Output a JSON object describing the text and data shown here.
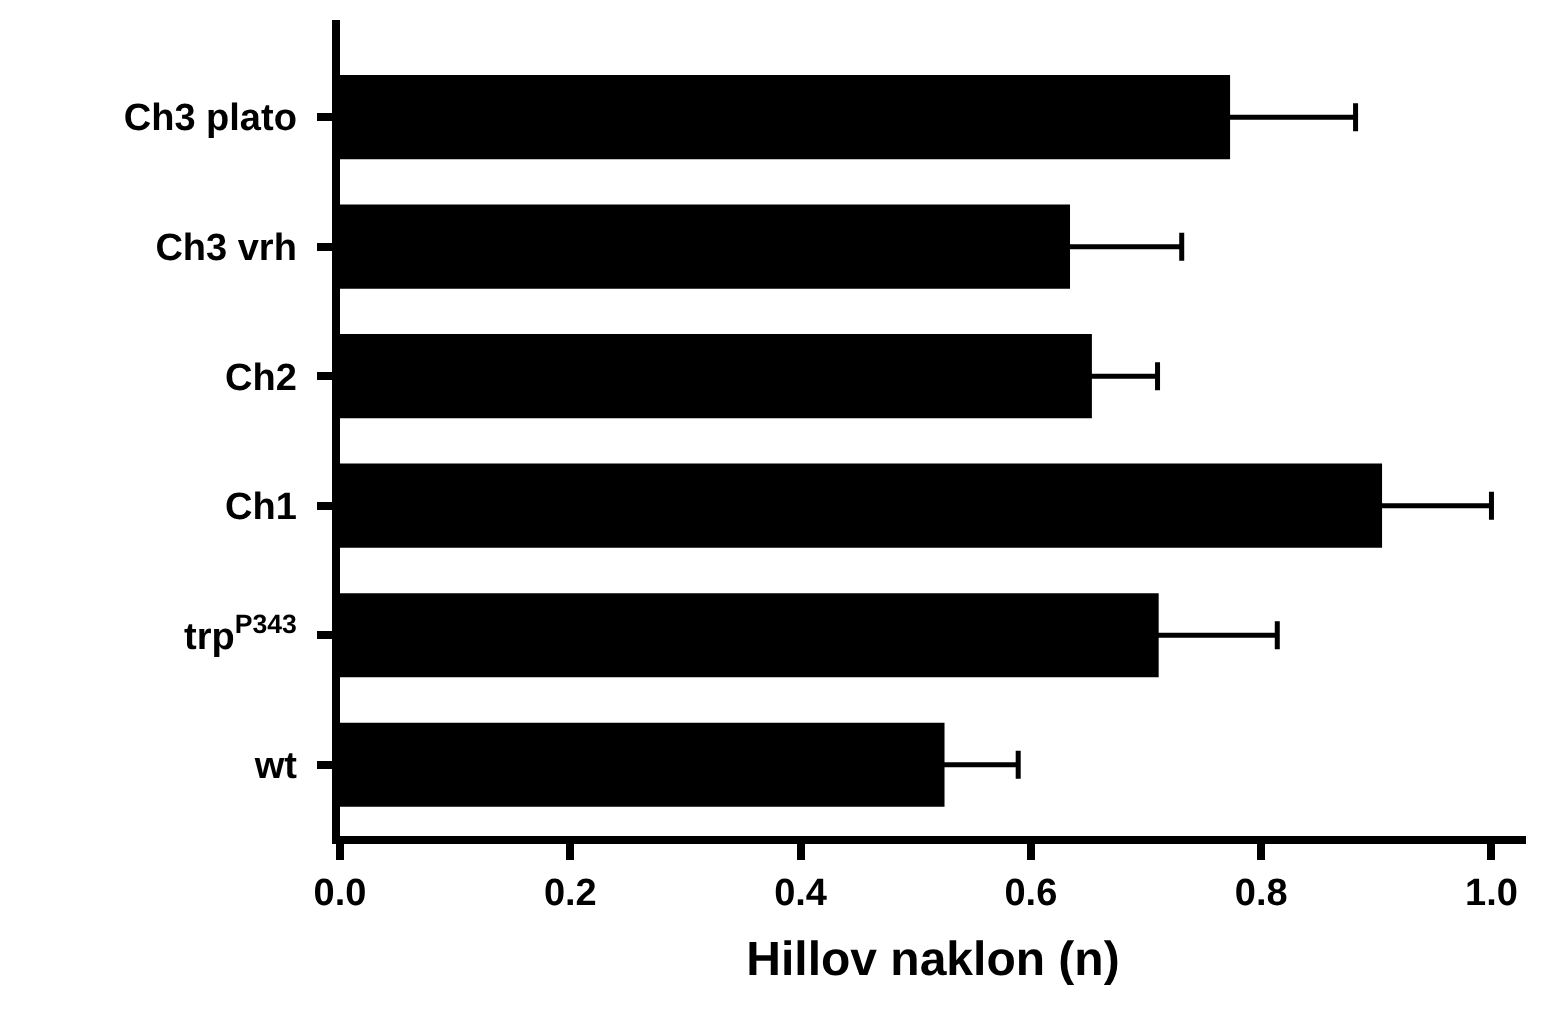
{
  "chart_data": {
    "type": "bar",
    "orientation": "horizontal",
    "xlabel": "Hillov naklon (n)",
    "categories": [
      "Ch3 plato",
      "Ch3 vrh",
      "Ch2",
      "Ch1",
      "trp$^{P343}$",
      "wt"
    ],
    "values": [
      0.773,
      0.634,
      0.653,
      0.905,
      0.711,
      0.525
    ],
    "errors": [
      0.109,
      0.097,
      0.057,
      0.095,
      0.103,
      0.064
    ],
    "color": "#000000",
    "xlim": [
      0,
      1.03
    ],
    "xticks": [
      {
        "value": 0,
        "label": "0.0"
      },
      0.2,
      0.4,
      0.6,
      0.8,
      {
        "value": 1,
        "label": "1.0"
      }
    ],
    "grid": false,
    "legend": false
  }
}
